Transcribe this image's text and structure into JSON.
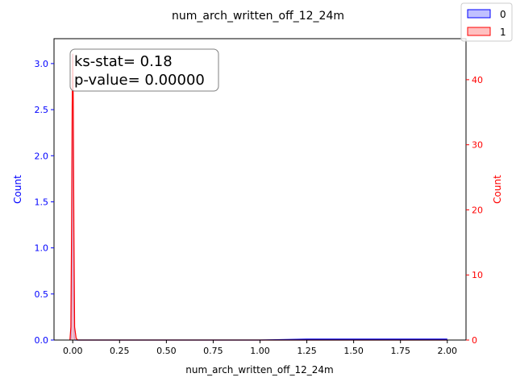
{
  "chart_data": {
    "type": "area",
    "title": "num_arch_written_off_12_24m",
    "xlabel": "num_arch_written_off_12_24m",
    "ylabel_left": "Count",
    "ylabel_right": "Count",
    "xlim": [
      -0.1,
      2.1
    ],
    "ylim_left": [
      0,
      3.27
    ],
    "ylim_right": [
      0,
      46.3
    ],
    "x_ticks": [
      0.0,
      0.25,
      0.5,
      0.75,
      1.0,
      1.25,
      1.5,
      1.75,
      2.0
    ],
    "x_tick_labels": [
      "0.00",
      "0.25",
      "0.50",
      "0.75",
      "1.00",
      "1.25",
      "1.50",
      "1.75",
      "2.00"
    ],
    "y_left_ticks": [
      0.0,
      0.5,
      1.0,
      1.5,
      2.0,
      2.5,
      3.0
    ],
    "y_left_tick_labels": [
      "0.0",
      "0.5",
      "1.0",
      "1.5",
      "2.0",
      "2.5",
      "3.0"
    ],
    "y_right_ticks": [
      0,
      10,
      20,
      30,
      40
    ],
    "y_right_tick_labels": [
      "0",
      "10",
      "20",
      "30",
      "40"
    ],
    "legend": {
      "placement": "top-right",
      "entries": [
        "0",
        "1"
      ]
    },
    "annotation": {
      "lines": [
        "ks-stat= 0.18",
        "p-value= 0.00000"
      ]
    },
    "grid": false,
    "series": [
      {
        "name": "0",
        "axis": "left",
        "color": "#0000ff",
        "fill": "#c0c0ff",
        "points": [
          [
            -0.012,
            0
          ],
          [
            -0.008,
            0.03
          ],
          [
            -0.005,
            0.5
          ],
          [
            -0.003,
            1.9
          ],
          [
            0.0,
            3.1
          ],
          [
            0.003,
            1.9
          ],
          [
            0.005,
            0.5
          ],
          [
            0.008,
            0.03
          ],
          [
            0.012,
            0
          ],
          [
            1.0,
            0
          ],
          [
            1.25,
            0.01
          ],
          [
            1.5,
            0.01
          ],
          [
            1.75,
            0.01
          ],
          [
            2.0,
            0.01
          ]
        ]
      },
      {
        "name": "1",
        "axis": "right",
        "color": "#ff0000",
        "fill": "#ffc0c0",
        "points": [
          [
            -0.015,
            0
          ],
          [
            -0.01,
            2
          ],
          [
            -0.006,
            18
          ],
          [
            -0.003,
            36
          ],
          [
            0.0,
            44
          ],
          [
            0.003,
            36
          ],
          [
            0.006,
            18
          ],
          [
            0.01,
            2
          ],
          [
            0.018,
            0.3
          ],
          [
            0.025,
            0
          ],
          [
            1.0,
            0
          ],
          [
            2.0,
            0
          ]
        ]
      }
    ]
  }
}
